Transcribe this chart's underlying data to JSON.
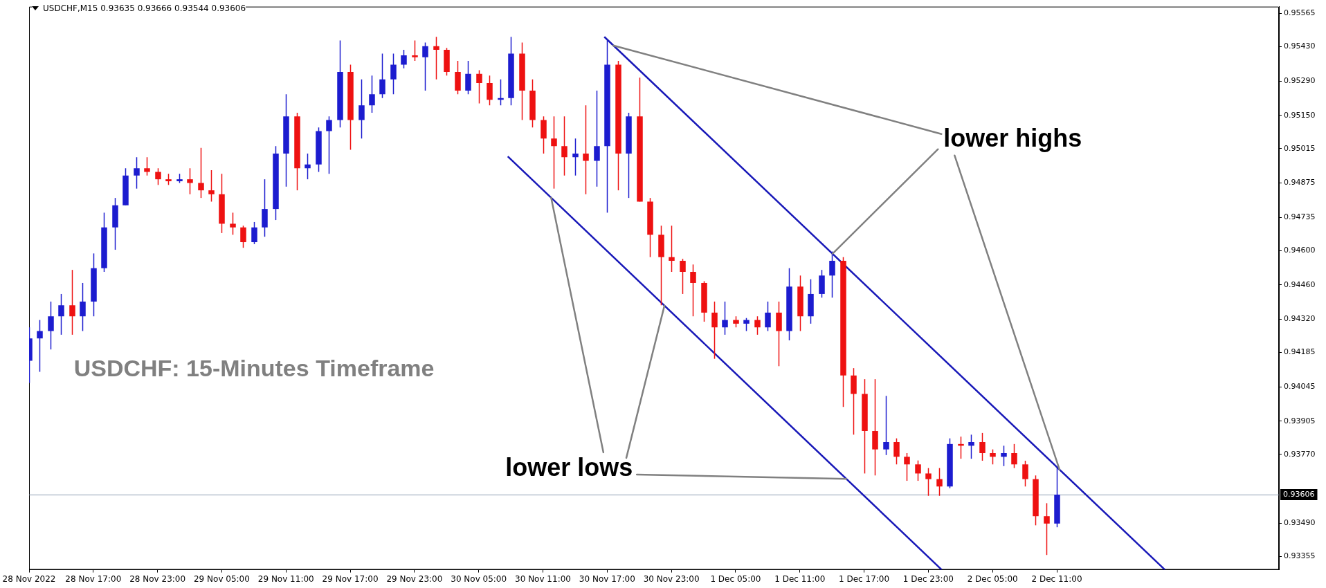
{
  "chart_data": {
    "type": "candlestick",
    "title": "USDCHF: 15-Minutes Timeframe",
    "subtitle": "USDCHF,M15  0.93635 0.93666 0.93544 0.93606",
    "x": [
      "2022-11-28T11:00",
      "2022-11-28T12:00",
      "2022-11-28T13:00",
      "2022-11-28T14:00",
      "2022-11-28T15:00",
      "2022-11-28T16:00",
      "2022-11-28T17:00",
      "2022-11-28T18:00",
      "2022-11-28T19:00",
      "2022-11-28T20:00",
      "2022-11-28T21:00",
      "2022-11-28T22:00",
      "2022-11-28T23:00",
      "2022-11-29T00:00",
      "2022-11-29T01:00",
      "2022-11-29T02:00",
      "2022-11-29T03:00",
      "2022-11-29T04:00",
      "2022-11-29T05:00",
      "2022-11-29T06:00",
      "2022-11-29T07:00",
      "2022-11-29T08:00",
      "2022-11-29T09:00",
      "2022-11-29T10:00",
      "2022-11-29T11:00",
      "2022-11-29T12:00",
      "2022-11-29T13:00",
      "2022-11-29T14:00",
      "2022-11-29T15:00",
      "2022-11-29T16:00",
      "2022-11-29T17:00",
      "2022-11-29T18:00",
      "2022-11-29T19:00",
      "2022-11-29T20:00",
      "2022-11-29T21:00",
      "2022-11-29T22:00",
      "2022-11-29T23:00",
      "2022-11-30T00:00",
      "2022-11-30T01:00",
      "2022-11-30T02:00",
      "2022-11-30T03:00",
      "2022-11-30T04:00",
      "2022-11-30T05:00",
      "2022-11-30T06:00",
      "2022-11-30T07:00",
      "2022-11-30T08:00",
      "2022-11-30T09:00",
      "2022-11-30T10:00",
      "2022-11-30T11:00",
      "2022-11-30T12:00",
      "2022-11-30T13:00",
      "2022-11-30T14:00",
      "2022-11-30T15:00",
      "2022-11-30T16:00",
      "2022-11-30T17:00",
      "2022-11-30T18:00",
      "2022-11-30T19:00",
      "2022-11-30T20:00",
      "2022-11-30T21:00",
      "2022-11-30T22:00",
      "2022-11-30T23:00",
      "2022-12-01T00:00",
      "2022-12-01T01:00",
      "2022-12-01T02:00",
      "2022-12-01T03:00",
      "2022-12-01T04:00",
      "2022-12-01T05:00",
      "2022-12-01T06:00",
      "2022-12-01T07:00",
      "2022-12-01T08:00",
      "2022-12-01T09:00",
      "2022-12-01T10:00",
      "2022-12-01T11:00",
      "2022-12-01T12:00",
      "2022-12-01T13:00",
      "2022-12-01T14:00",
      "2022-12-01T15:00",
      "2022-12-01T16:00",
      "2022-12-01T17:00",
      "2022-12-01T18:00",
      "2022-12-01T19:00",
      "2022-12-01T20:00",
      "2022-12-01T21:00",
      "2022-12-01T22:00",
      "2022-12-01T23:00",
      "2022-12-02T00:00",
      "2022-12-02T01:00",
      "2022-12-02T02:00",
      "2022-12-02T03:00",
      "2022-12-02T04:00",
      "2022-12-02T05:00",
      "2022-12-02T06:00",
      "2022-12-02T07:00",
      "2022-12-02T08:00",
      "2022-12-02T09:00",
      "2022-12-02T10:00",
      "2022-12-02T11:00"
    ],
    "ohlc": [
      [
        0.94151,
        0.94287,
        0.94061,
        0.94242
      ],
      [
        0.94242,
        0.94317,
        0.94106,
        0.94272
      ],
      [
        0.94272,
        0.94392,
        0.94197,
        0.94332
      ],
      [
        0.94332,
        0.94423,
        0.94257,
        0.94377
      ],
      [
        0.94377,
        0.94521,
        0.94257,
        0.94332
      ],
      [
        0.94332,
        0.94468,
        0.94272,
        0.94392
      ],
      [
        0.94392,
        0.94588,
        0.94332,
        0.94528
      ],
      [
        0.94528,
        0.94754,
        0.94513,
        0.94694
      ],
      [
        0.94694,
        0.94814,
        0.94603,
        0.94784
      ],
      [
        0.94784,
        0.94935,
        0.94784,
        0.94905
      ],
      [
        0.94905,
        0.9498,
        0.94852,
        0.94935
      ],
      [
        0.94935,
        0.9498,
        0.94905,
        0.9492
      ],
      [
        0.9492,
        0.94935,
        0.94867,
        0.9489
      ],
      [
        0.9489,
        0.94912,
        0.94867,
        0.94882
      ],
      [
        0.94882,
        0.94912,
        0.94875,
        0.9489
      ],
      [
        0.9489,
        0.94935,
        0.94829,
        0.94875
      ],
      [
        0.94875,
        0.95018,
        0.94814,
        0.94845
      ],
      [
        0.94845,
        0.94927,
        0.94799,
        0.94829
      ],
      [
        0.94829,
        0.94912,
        0.94671,
        0.94709
      ],
      [
        0.94709,
        0.94754,
        0.94664,
        0.94694
      ],
      [
        0.94694,
        0.94701,
        0.94611,
        0.94634
      ],
      [
        0.94634,
        0.94716,
        0.94626,
        0.94694
      ],
      [
        0.94694,
        0.9489,
        0.94656,
        0.94769
      ],
      [
        0.94769,
        0.95025,
        0.94724,
        0.94995
      ],
      [
        0.94995,
        0.95236,
        0.9486,
        0.95146
      ],
      [
        0.95146,
        0.95161,
        0.94845,
        0.94935
      ],
      [
        0.94935,
        0.94995,
        0.9489,
        0.9495
      ],
      [
        0.9495,
        0.95101,
        0.9492,
        0.95086
      ],
      [
        0.95086,
        0.95146,
        0.94912,
        0.95131
      ],
      [
        0.95131,
        0.95455,
        0.95101,
        0.95327
      ],
      [
        0.95327,
        0.95357,
        0.9501,
        0.95131
      ],
      [
        0.95131,
        0.95297,
        0.95056,
        0.95191
      ],
      [
        0.95191,
        0.95312,
        0.95161,
        0.95236
      ],
      [
        0.95236,
        0.95402,
        0.95221,
        0.95297
      ],
      [
        0.95297,
        0.95402,
        0.95236,
        0.95357
      ],
      [
        0.95357,
        0.95417,
        0.95342,
        0.95395
      ],
      [
        0.95395,
        0.95455,
        0.95372,
        0.95387
      ],
      [
        0.95387,
        0.95447,
        0.95251,
        0.95432
      ],
      [
        0.95432,
        0.9547,
        0.95297,
        0.95417
      ],
      [
        0.95417,
        0.95425,
        0.95312,
        0.95327
      ],
      [
        0.95327,
        0.95372,
        0.95236,
        0.95251
      ],
      [
        0.95251,
        0.95372,
        0.95236,
        0.95319
      ],
      [
        0.95319,
        0.95334,
        0.95199,
        0.95282
      ],
      [
        0.95282,
        0.95312,
        0.95191,
        0.95214
      ],
      [
        0.95214,
        0.95297,
        0.95191,
        0.95221
      ],
      [
        0.95221,
        0.9547,
        0.95191,
        0.95402
      ],
      [
        0.95402,
        0.95447,
        0.95131,
        0.95251
      ],
      [
        0.95251,
        0.95297,
        0.95101,
        0.95131
      ],
      [
        0.95131,
        0.95146,
        0.94995,
        0.95056
      ],
      [
        0.95056,
        0.95146,
        0.94852,
        0.95025
      ],
      [
        0.95025,
        0.95146,
        0.94905,
        0.9498
      ],
      [
        0.9498,
        0.95056,
        0.94905,
        0.94995
      ],
      [
        0.94995,
        0.95191,
        0.94829,
        0.94965
      ],
      [
        0.94965,
        0.95251,
        0.9486,
        0.95025
      ],
      [
        0.95025,
        0.95455,
        0.94754,
        0.95357
      ],
      [
        0.95357,
        0.95372,
        0.94845,
        0.94995
      ],
      [
        0.94995,
        0.95161,
        0.94814,
        0.95146
      ],
      [
        0.95146,
        0.95304,
        0.94799,
        0.94799
      ],
      [
        0.94799,
        0.94814,
        0.94573,
        0.94664
      ],
      [
        0.94664,
        0.94701,
        0.94377,
        0.94573
      ],
      [
        0.94573,
        0.94701,
        0.94513,
        0.94558
      ],
      [
        0.94558,
        0.94566,
        0.94423,
        0.94513
      ],
      [
        0.94513,
        0.94543,
        0.94332,
        0.94468
      ],
      [
        0.94468,
        0.94475,
        0.9431,
        0.94347
      ],
      [
        0.94347,
        0.94392,
        0.94159,
        0.94287
      ],
      [
        0.94287,
        0.94392,
        0.94257,
        0.94317
      ],
      [
        0.94317,
        0.94332,
        0.94287,
        0.94302
      ],
      [
        0.94302,
        0.94325,
        0.94272,
        0.94317
      ],
      [
        0.94317,
        0.94332,
        0.94257,
        0.94287
      ],
      [
        0.94287,
        0.94392,
        0.94272,
        0.94347
      ],
      [
        0.94347,
        0.94392,
        0.94129,
        0.94272
      ],
      [
        0.94272,
        0.94528,
        0.94234,
        0.94453
      ],
      [
        0.94453,
        0.94498,
        0.94272,
        0.94332
      ],
      [
        0.94332,
        0.94483,
        0.94302,
        0.94423
      ],
      [
        0.94423,
        0.94521,
        0.94408,
        0.94498
      ],
      [
        0.94498,
        0.94596,
        0.94408,
        0.94558
      ],
      [
        0.94558,
        0.94573,
        0.93963,
        0.94091
      ],
      [
        0.94091,
        0.94121,
        0.9385,
        0.94016
      ],
      [
        0.94016,
        0.94076,
        0.93692,
        0.93865
      ],
      [
        0.93865,
        0.94076,
        0.93684,
        0.9379
      ],
      [
        0.9379,
        0.94008,
        0.93767,
        0.9382
      ],
      [
        0.9382,
        0.93835,
        0.93729,
        0.9376
      ],
      [
        0.9376,
        0.93775,
        0.93662,
        0.93729
      ],
      [
        0.93729,
        0.93745,
        0.93662,
        0.93692
      ],
      [
        0.93692,
        0.93714,
        0.93601,
        0.93669
      ],
      [
        0.93669,
        0.93714,
        0.93601,
        0.93639
      ],
      [
        0.93639,
        0.93835,
        0.93632,
        0.93812
      ],
      [
        0.93812,
        0.93842,
        0.93752,
        0.93805
      ],
      [
        0.93805,
        0.9385,
        0.93752,
        0.9382
      ],
      [
        0.9382,
        0.93857,
        0.93744,
        0.93775
      ],
      [
        0.93775,
        0.9379,
        0.93729,
        0.9376
      ],
      [
        0.9376,
        0.93805,
        0.93722,
        0.93775
      ],
      [
        0.93775,
        0.93812,
        0.93714,
        0.93729
      ],
      [
        0.93729,
        0.93744,
        0.93639,
        0.93669
      ],
      [
        0.93669,
        0.93684,
        0.93481,
        0.93518
      ],
      [
        0.93518,
        0.93571,
        0.9336,
        0.93488
      ],
      [
        0.93488,
        0.93714,
        0.93473,
        0.93606
      ]
    ],
    "colors": [
      "#1c1ccf",
      "#1c1ccf",
      "#1c1ccf",
      "#1c1ccf",
      "#ee1111",
      "#1c1ccf",
      "#1c1ccf",
      "#1c1ccf",
      "#1c1ccf",
      "#1c1ccf",
      "#1c1ccf",
      "#ee1111",
      "#ee1111",
      "#ee1111",
      "#1c1ccf",
      "#ee1111",
      "#ee1111",
      "#ee1111",
      "#ee1111",
      "#ee1111",
      "#ee1111",
      "#1c1ccf",
      "#1c1ccf",
      "#1c1ccf",
      "#1c1ccf",
      "#ee1111",
      "#1c1ccf",
      "#1c1ccf",
      "#1c1ccf",
      "#1c1ccf",
      "#ee1111",
      "#1c1ccf",
      "#1c1ccf",
      "#1c1ccf",
      "#1c1ccf",
      "#1c1ccf",
      "#ee1111",
      "#1c1ccf",
      "#ee1111",
      "#ee1111",
      "#ee1111",
      "#1c1ccf",
      "#ee1111",
      "#ee1111",
      "#1c1ccf",
      "#1c1ccf",
      "#ee1111",
      "#ee1111",
      "#ee1111",
      "#ee1111",
      "#ee1111",
      "#1c1ccf",
      "#ee1111",
      "#1c1ccf",
      "#1c1ccf",
      "#ee1111",
      "#1c1ccf",
      "#ee1111",
      "#ee1111",
      "#ee1111",
      "#ee1111",
      "#ee1111",
      "#ee1111",
      "#ee1111",
      "#ee1111",
      "#1c1ccf",
      "#ee1111",
      "#1c1ccf",
      "#ee1111",
      "#1c1ccf",
      "#ee1111",
      "#1c1ccf",
      "#ee1111",
      "#1c1ccf",
      "#1c1ccf",
      "#1c1ccf",
      "#ee1111",
      "#ee1111",
      "#ee1111",
      "#ee1111",
      "#1c1ccf",
      "#ee1111",
      "#ee1111",
      "#ee1111",
      "#ee1111",
      "#ee1111",
      "#1c1ccf",
      "#ee1111",
      "#1c1ccf",
      "#ee1111",
      "#ee1111",
      "#1c1ccf",
      "#ee1111",
      "#ee1111",
      "#ee1111",
      "#ee1111",
      "#1c1ccf"
    ],
    "series": [
      {
        "type": "line",
        "color": "#1818b8",
        "x": [
          "2022-11-30T16:44",
          "2022-12-02T21:06"
        ],
        "values": [
          0.9547,
          0.933
        ]
      },
      {
        "type": "line",
        "color": "#1818b8",
        "x": [
          "2022-11-30T07:43",
          "2022-12-02T00:15"
        ],
        "values": [
          0.94983,
          0.933
        ]
      }
    ],
    "xlim": [
      "2022-11-28T11:00",
      "2022-12-03T07:45"
    ],
    "xticks": [
      {
        "value": "2022-11-28T11:00",
        "label": "28 Nov 2022"
      },
      {
        "value": "2022-11-28T17:00",
        "label": "28 Nov 17:00"
      },
      {
        "value": "2022-11-28T23:00",
        "label": "28 Nov 23:00"
      },
      {
        "value": "2022-11-29T05:00",
        "label": "29 Nov 05:00"
      },
      {
        "value": "2022-11-29T11:00",
        "label": "29 Nov 11:00"
      },
      {
        "value": "2022-11-29T17:00",
        "label": "29 Nov 17:00"
      },
      {
        "value": "2022-11-29T23:00",
        "label": "29 Nov 23:00"
      },
      {
        "value": "2022-11-30T05:00",
        "label": "30 Nov 05:00"
      },
      {
        "value": "2022-11-30T11:00",
        "label": "30 Nov 11:00"
      },
      {
        "value": "2022-11-30T17:00",
        "label": "30 Nov 17:00"
      },
      {
        "value": "2022-11-30T23:00",
        "label": "30 Nov 23:00"
      },
      {
        "value": "2022-12-01T05:00",
        "label": "1 Dec 05:00"
      },
      {
        "value": "2022-12-01T11:00",
        "label": "1 Dec 11:00"
      },
      {
        "value": "2022-12-01T17:00",
        "label": "1 Dec 17:00"
      },
      {
        "value": "2022-12-01T23:00",
        "label": "1 Dec 23:00"
      },
      {
        "value": "2022-12-02T05:00",
        "label": "2 Dec 05:00"
      },
      {
        "value": "2022-12-02T11:00",
        "label": "2 Dec 11:00"
      }
    ],
    "ylim": [
      0.933,
      0.95593
    ],
    "yticks": [
      {
        "value": 0.93355,
        "label": "0.93355"
      },
      {
        "value": 0.9349,
        "label": "0.93490"
      },
      {
        "value": 0.9377,
        "label": "0.93770"
      },
      {
        "value": 0.93905,
        "label": "0.93905"
      },
      {
        "value": 0.94045,
        "label": "0.94045"
      },
      {
        "value": 0.94185,
        "label": "0.94185"
      },
      {
        "value": 0.9432,
        "label": "0.94320"
      },
      {
        "value": 0.9446,
        "label": "0.94460"
      },
      {
        "value": 0.946,
        "label": "0.94600"
      },
      {
        "value": 0.94735,
        "label": "0.94735"
      },
      {
        "value": 0.94875,
        "label": "0.94875"
      },
      {
        "value": 0.95015,
        "label": "0.95015"
      },
      {
        "value": 0.9515,
        "label": "0.95150"
      },
      {
        "value": 0.9529,
        "label": "0.95290"
      },
      {
        "value": 0.9543,
        "label": "0.95430"
      },
      {
        "value": 0.95565,
        "label": "0.95565"
      }
    ],
    "ref_lines": [
      {
        "axis": "y",
        "value": 0.93606,
        "label": "0.93606",
        "color": "#8a9ab0"
      }
    ],
    "annotations": [
      {
        "text": "lower highs",
        "x": "2022-11-30T17:34",
        "y": 0.95435
      },
      {
        "text": "lower lows",
        "x": "2022-11-30T11:46",
        "y": 0.94815
      }
    ],
    "legend": false
  }
}
